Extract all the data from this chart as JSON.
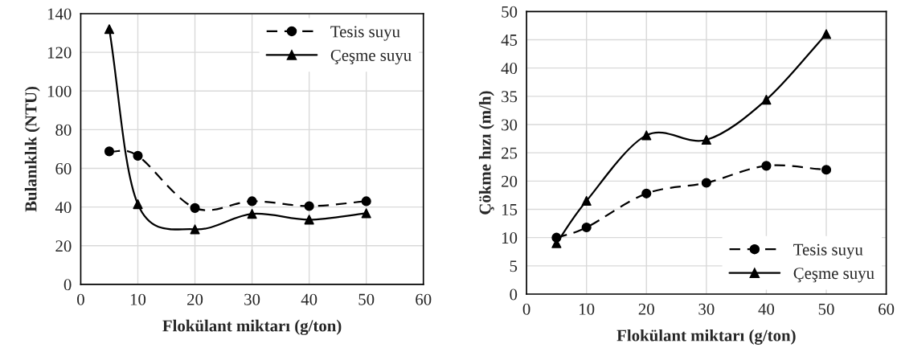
{
  "chart_data": [
    {
      "type": "line",
      "xlabel": "Flokülant miktarı (g/ton)",
      "ylabel": "Bulanıklık (NTU)",
      "x": [
        5,
        10,
        20,
        30,
        40,
        50
      ],
      "series": [
        {
          "name": "Tesis suyu",
          "color": "#000000",
          "values": [
            68.8,
            66.5,
            39.5,
            43,
            40.5,
            43
          ],
          "marker": "circle",
          "line_style": "dashed"
        },
        {
          "name": "Çeşme suyu",
          "color": "#000000",
          "values": [
            132,
            41.5,
            28.5,
            36.5,
            33.5,
            36.8
          ],
          "marker": "triangle",
          "line_style": "solid"
        }
      ],
      "xlim": [
        0,
        60
      ],
      "xticks": [
        0,
        10,
        20,
        30,
        40,
        50,
        60
      ],
      "ylim": [
        0,
        140
      ],
      "yticks": [
        0,
        20,
        40,
        60,
        80,
        100,
        120,
        140
      ],
      "grid": true,
      "legend": "top right"
    },
    {
      "type": "line",
      "xlabel": "Flokülant miktarı (g/ton)",
      "ylabel": "Çökme hızı (m/h)",
      "x": [
        5,
        10,
        20,
        30,
        40,
        50
      ],
      "series": [
        {
          "name": "Tesis suyu",
          "color": "#000000",
          "values": [
            10,
            11.8,
            17.8,
            19.7,
            22.7,
            22
          ],
          "marker": "circle",
          "line_style": "dashed"
        },
        {
          "name": "Çeşme suyu",
          "color": "#000000",
          "values": [
            9,
            16.5,
            28.1,
            27.3,
            34.4,
            46
          ],
          "marker": "triangle",
          "line_style": "solid"
        }
      ],
      "xlim": [
        0,
        60
      ],
      "xticks": [
        0,
        10,
        20,
        30,
        40,
        50,
        60
      ],
      "ylim": [
        0,
        50
      ],
      "yticks": [
        0,
        5,
        10,
        15,
        20,
        25,
        30,
        35,
        40,
        45,
        50
      ],
      "grid": true,
      "legend": "bottom right"
    }
  ]
}
